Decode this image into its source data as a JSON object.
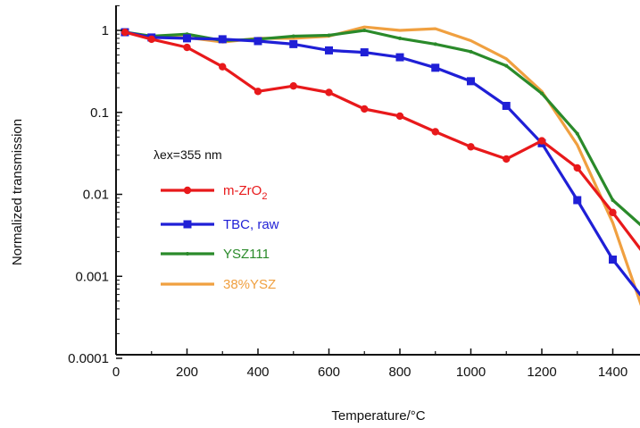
{
  "chart_data": {
    "type": "line",
    "xlabel": "Temperature/°C",
    "ylabel": "Normalized transmission",
    "xlim": [
      0,
      1500
    ],
    "ylim": [
      0.0001,
      2
    ],
    "y_scale": "log",
    "x_ticks": [
      0,
      200,
      400,
      600,
      800,
      1000,
      1200,
      1400
    ],
    "y_ticks": [
      {
        "value": 1,
        "label": "1"
      },
      {
        "value": 0.1,
        "label": "0.1"
      },
      {
        "value": 0.01,
        "label": "0.01"
      },
      {
        "value": 0.001,
        "label": "0.001"
      },
      {
        "value": 0.0001,
        "label": "0.0001"
      }
    ],
    "grid": false,
    "legend_position": "left-middle",
    "annotation": "λex=355 nm",
    "series": [
      {
        "name": "m-ZrO2",
        "color": "#e8191b",
        "marker": "circle",
        "x": [
          25,
          100,
          200,
          300,
          400,
          500,
          600,
          700,
          800,
          900,
          1000,
          1100,
          1200,
          1300,
          1400,
          1500
        ],
        "y": [
          0.95,
          0.78,
          0.62,
          0.36,
          0.18,
          0.21,
          0.175,
          0.11,
          0.09,
          0.058,
          0.038,
          0.027,
          0.045,
          0.021,
          0.006,
          0.0016
        ]
      },
      {
        "name": "TBC, raw",
        "color": "#1f1fd6",
        "marker": "square",
        "x": [
          25,
          100,
          200,
          300,
          400,
          500,
          600,
          700,
          800,
          900,
          1000,
          1100,
          1200,
          1300,
          1400,
          1500
        ],
        "y": [
          0.95,
          0.82,
          0.8,
          0.78,
          0.74,
          0.68,
          0.57,
          0.54,
          0.47,
          0.35,
          0.24,
          0.12,
          0.042,
          0.0085,
          0.0016,
          0.00045
        ]
      },
      {
        "name": "YSZ111",
        "color": "#2a8a2a",
        "marker": "diamond-small",
        "x": [
          25,
          100,
          200,
          300,
          400,
          500,
          600,
          700,
          800,
          900,
          1000,
          1100,
          1200,
          1300,
          1400,
          1500
        ],
        "y": [
          0.95,
          0.85,
          0.9,
          0.75,
          0.78,
          0.85,
          0.87,
          1.0,
          0.8,
          0.68,
          0.55,
          0.37,
          0.17,
          0.055,
          0.0085,
          0.0035
        ]
      },
      {
        "name": "38%YSZ",
        "color": "#f0a040",
        "marker": "none",
        "x": [
          25,
          100,
          200,
          300,
          400,
          500,
          600,
          700,
          800,
          900,
          1000,
          1100,
          1200,
          1300,
          1400,
          1500
        ],
        "y": [
          0.95,
          0.82,
          0.82,
          0.72,
          0.8,
          0.8,
          0.85,
          1.1,
          1.0,
          1.05,
          0.75,
          0.45,
          0.18,
          0.04,
          0.0045,
          0.00025
        ]
      }
    ]
  }
}
